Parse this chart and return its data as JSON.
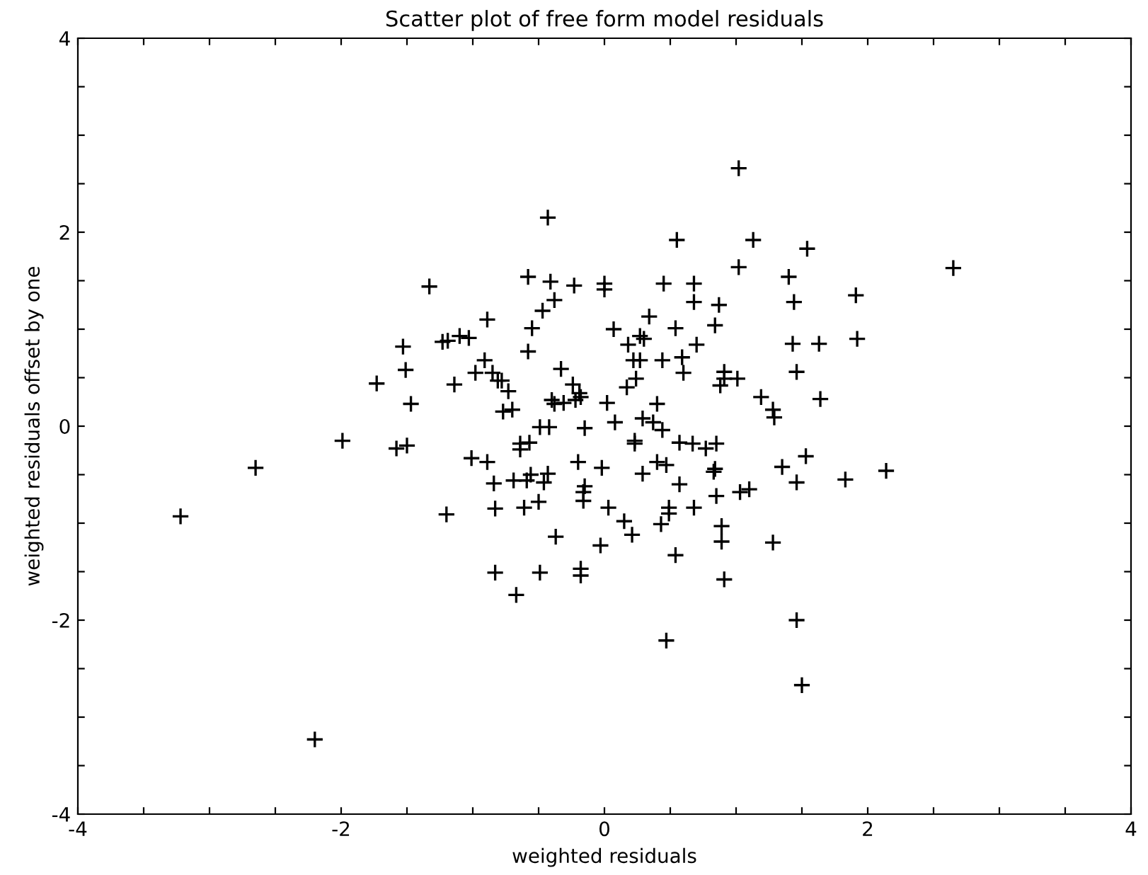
{
  "chart_data": {
    "type": "scatter",
    "title": "Scatter plot of free form model residuals",
    "xlabel": "weighted residuals",
    "ylabel": "weighted residuals offset by one",
    "marker": "cross",
    "grid": false,
    "legend": false,
    "xlim": [
      -4,
      4
    ],
    "ylim": [
      -4,
      4
    ],
    "xticks": [
      -4,
      {
        "value": -3.5,
        "label": null
      },
      {
        "value": -3,
        "label": null
      },
      {
        "value": -2.5,
        "label": null
      },
      -2,
      {
        "value": -1.5,
        "label": null
      },
      {
        "value": -1,
        "label": null
      },
      {
        "value": -0.5,
        "label": null
      },
      0,
      {
        "value": 0.5,
        "label": null
      },
      {
        "value": 1,
        "label": null
      },
      {
        "value": 1.5,
        "label": null
      },
      2,
      {
        "value": 2.5,
        "label": null
      },
      {
        "value": 3,
        "label": null
      },
      {
        "value": 3.5,
        "label": null
      },
      4
    ],
    "yticks": [
      -4,
      {
        "value": -3.5,
        "label": null
      },
      {
        "value": -3,
        "label": null
      },
      {
        "value": -2.5,
        "label": null
      },
      -2,
      {
        "value": -1.5,
        "label": null
      },
      {
        "value": -1,
        "label": null
      },
      {
        "value": -0.5,
        "label": null
      },
      0,
      {
        "value": 0.5,
        "label": null
      },
      {
        "value": 1,
        "label": null
      },
      {
        "value": 1.5,
        "label": null
      },
      2,
      {
        "value": 2.5,
        "label": null
      },
      {
        "value": 3,
        "label": null
      },
      {
        "value": 3.5,
        "label": null
      },
      4
    ],
    "series": [
      {
        "color": "#000000",
        "x": [
          -3.22,
          -2.65,
          -1.99,
          -1.73,
          -1.53,
          -1.51,
          -1.47,
          -1.58,
          -1.5,
          -1.33,
          1.02,
          -0.43,
          0.55,
          1.13,
          1.02,
          -0.58,
          -0.41,
          -0.23,
          0,
          0,
          0.45,
          0.68,
          0.68,
          0.87,
          -0.38,
          -0.47,
          -0.89,
          -0.55,
          0.34,
          0.07,
          0.54,
          0.84,
          -1.23,
          -1.19,
          -1.1,
          -1.03,
          -0.58,
          0.18,
          0.27,
          0.3,
          0.7,
          -0.91,
          0.22,
          0.27,
          0.44,
          0.59,
          0.6,
          -0.98,
          -0.85,
          -0.81,
          -0.78,
          -0.73,
          -1.14,
          -0.33,
          -0.24,
          -0.19,
          -0.18,
          -0.22,
          -0.4,
          -0.38,
          -0.31,
          0.02,
          0.17,
          0.24,
          0.4,
          0.91,
          0.91,
          1.01,
          0.88,
          1.19,
          -0.77,
          -0.7,
          0.08,
          0.29,
          0.37,
          -0.49,
          -0.42,
          -0.15,
          0.44,
          -0.64,
          -0.57,
          -0.64,
          0.23,
          0.23,
          0.57,
          0.67,
          0.77,
          0.85,
          -1.01,
          -0.89,
          -0.2,
          -0.02,
          0.29,
          0.4,
          0.47,
          0.84,
          0.83,
          -0.84,
          -0.69,
          -0.59,
          -0.56,
          -0.46,
          -0.43,
          -0.15,
          -0.16,
          -0.16,
          0.57,
          0.85,
          1.03,
          1.1,
          -1.2,
          -0.83,
          -0.61,
          -0.5,
          0.03,
          0.15,
          0.21,
          0.43,
          0.49,
          0.49,
          0.68,
          0.89,
          0.89,
          -0.37,
          -0.03,
          0.54,
          -0.83,
          -0.49,
          -0.18,
          -0.18,
          0.91,
          -0.67,
          0.47,
          1.54,
          2.65,
          1.4,
          1.44,
          1.91,
          1.43,
          1.63,
          1.92,
          1.46,
          1.64,
          1.28,
          1.29,
          1.53,
          1.35,
          1.46,
          1.83,
          2.14,
          1.28,
          1.46,
          1.5,
          -2.2
        ],
        "values": [
          -0.93,
          -0.43,
          -0.15,
          0.44,
          0.82,
          0.58,
          0.23,
          -0.23,
          -0.2,
          1.44,
          2.66,
          2.15,
          1.92,
          1.92,
          1.64,
          1.54,
          1.49,
          1.45,
          1.47,
          1.41,
          1.47,
          1.47,
          1.28,
          1.25,
          1.3,
          1.19,
          1.1,
          1.01,
          1.13,
          1.0,
          1.01,
          1.04,
          0.87,
          0.88,
          0.93,
          0.91,
          0.77,
          0.84,
          0.93,
          0.9,
          0.84,
          0.68,
          0.68,
          0.68,
          0.68,
          0.71,
          0.55,
          0.55,
          0.55,
          0.47,
          0.47,
          0.36,
          0.43,
          0.59,
          0.43,
          0.34,
          0.3,
          0.27,
          0.27,
          0.23,
          0.24,
          0.24,
          0.4,
          0.49,
          0.23,
          0.56,
          0.49,
          0.49,
          0.42,
          0.3,
          0.15,
          0.17,
          0.04,
          0.08,
          0.04,
          -0.01,
          -0.01,
          -0.02,
          -0.04,
          -0.18,
          -0.17,
          -0.24,
          -0.15,
          -0.18,
          -0.17,
          -0.18,
          -0.23,
          -0.18,
          -0.33,
          -0.37,
          -0.37,
          -0.43,
          -0.49,
          -0.37,
          -0.4,
          -0.44,
          -0.47,
          -0.59,
          -0.56,
          -0.56,
          -0.5,
          -0.58,
          -0.49,
          -0.62,
          -0.68,
          -0.77,
          -0.6,
          -0.72,
          -0.68,
          -0.65,
          -0.91,
          -0.85,
          -0.84,
          -0.78,
          -0.84,
          -0.98,
          -1.12,
          -1.01,
          -0.84,
          -0.9,
          -0.84,
          -1.03,
          -1.19,
          -1.14,
          -1.23,
          -1.33,
          -1.51,
          -1.51,
          -1.47,
          -1.54,
          -1.58,
          -1.74,
          -2.21,
          1.83,
          1.63,
          1.54,
          1.28,
          1.35,
          0.85,
          0.85,
          0.9,
          0.56,
          0.28,
          0.17,
          0.09,
          -0.31,
          -0.42,
          -0.58,
          -0.55,
          -0.46,
          -1.2,
          -2.0,
          -2.67,
          -3.23
        ]
      }
    ]
  }
}
